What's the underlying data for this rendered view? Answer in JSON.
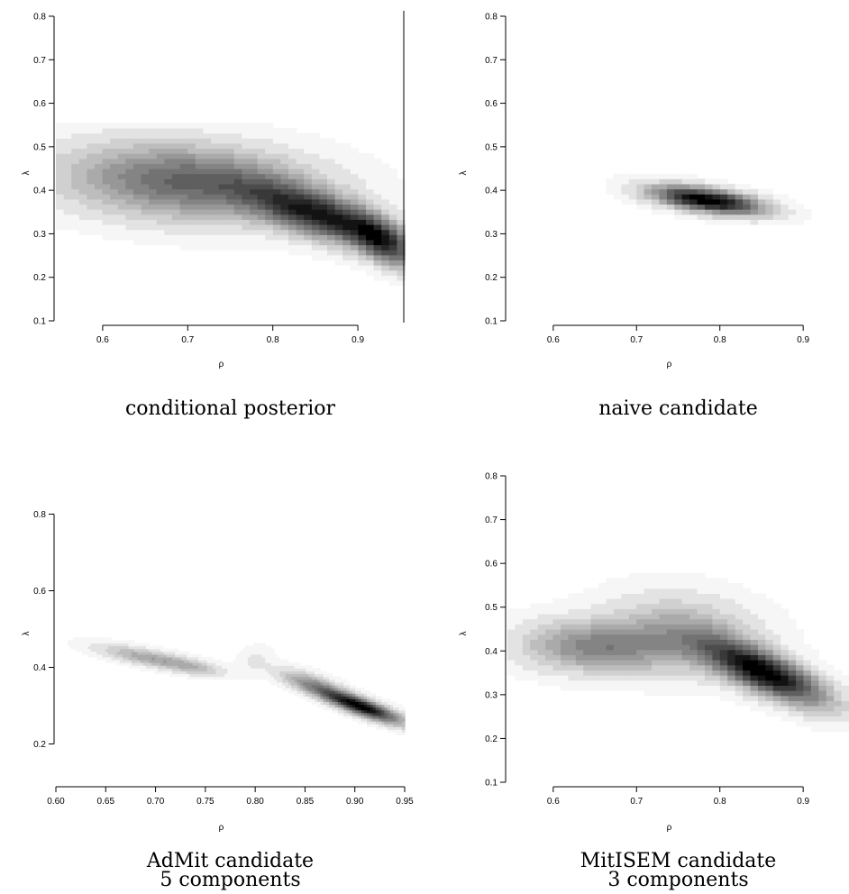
{
  "chart_data": [
    {
      "type": "heatmap",
      "caption_lines": [
        "conditional posterior"
      ],
      "xlabel": "ρ",
      "ylabel": "λ",
      "xlim": [
        0.545,
        0.955
      ],
      "ylim": [
        0.1,
        0.8
      ],
      "xticks": [
        0.6,
        0.7,
        0.8,
        0.9
      ],
      "xtick_labels": [
        "0.6",
        "0.7",
        "0.8",
        "0.9"
      ],
      "yticks": [
        0.1,
        0.2,
        0.3,
        0.4,
        0.5,
        0.6,
        0.7,
        0.8
      ],
      "ytick_labels": [
        "0.1",
        "0.2",
        "0.3",
        "0.4",
        "0.5",
        "0.6",
        "0.7",
        "0.8"
      ],
      "color_scale": "white-to-black",
      "vertical_line_at_x": 0.955,
      "grid_resolution": [
        45,
        60
      ],
      "density_components": [
        {
          "mean": [
            0.7,
            0.42
          ],
          "sd": [
            0.1,
            0.06
          ],
          "corr": -0.2,
          "weight": 0.55
        },
        {
          "mean": [
            0.86,
            0.34
          ],
          "sd": [
            0.06,
            0.05
          ],
          "corr": -0.7,
          "weight": 0.75
        },
        {
          "mean": [
            0.93,
            0.28
          ],
          "sd": [
            0.025,
            0.04
          ],
          "corr": -0.6,
          "weight": 0.55
        }
      ],
      "support": {
        "x": [
          0.545,
          0.955
        ],
        "y": [
          0.16,
          0.56
        ]
      },
      "levels": 14
    },
    {
      "type": "heatmap",
      "caption_lines": [
        "naive candidate"
      ],
      "xlabel": "ρ",
      "ylabel": "λ",
      "xlim": [
        0.545,
        0.955
      ],
      "ylim": [
        0.1,
        0.8
      ],
      "xticks": [
        0.6,
        0.7,
        0.8,
        0.9
      ],
      "xtick_labels": [
        "0.6",
        "0.7",
        "0.8",
        "0.9"
      ],
      "yticks": [
        0.1,
        0.2,
        0.3,
        0.4,
        0.5,
        0.6,
        0.7,
        0.8
      ],
      "ytick_labels": [
        "0.1",
        "0.2",
        "0.3",
        "0.4",
        "0.5",
        "0.6",
        "0.7",
        "0.8"
      ],
      "color_scale": "white-to-black",
      "grid_resolution": [
        45,
        60
      ],
      "density_components": [
        {
          "mean": [
            0.785,
            0.378
          ],
          "sd": [
            0.045,
            0.022
          ],
          "corr": -0.55,
          "weight": 1.0
        }
      ],
      "support": {
        "x": [
          0.545,
          0.955
        ],
        "y": [
          0.1,
          0.8
        ]
      },
      "levels": 14
    },
    {
      "type": "heatmap",
      "caption_lines": [
        "AdMit candidate",
        "5 components"
      ],
      "xlabel": "ρ",
      "ylabel": "λ",
      "xlim": [
        0.6,
        0.95
      ],
      "ylim": [
        0.1,
        0.9
      ],
      "xticks": [
        0.6,
        0.65,
        0.7,
        0.75,
        0.8,
        0.85,
        0.9,
        0.95
      ],
      "xtick_labels": [
        "0.60",
        "0.65",
        "0.70",
        "0.75",
        "0.80",
        "0.85",
        "0.90",
        "0.95"
      ],
      "yticks": [
        0.2,
        0.4,
        0.6,
        0.8
      ],
      "ytick_labels": [
        "0.2",
        "0.4",
        "0.6",
        "0.8"
      ],
      "color_scale": "white-to-black",
      "grid_resolution": [
        120,
        110
      ],
      "density_components": [
        {
          "mean": [
            0.695,
            0.425
          ],
          "sd": [
            0.035,
            0.022
          ],
          "corr": -0.75,
          "weight": 0.35
        },
        {
          "mean": [
            0.74,
            0.4
          ],
          "sd": [
            0.02,
            0.015
          ],
          "corr": -0.5,
          "weight": 0.15
        },
        {
          "mean": [
            0.8,
            0.42
          ],
          "sd": [
            0.012,
            0.025
          ],
          "corr": 0.2,
          "weight": 0.08
        },
        {
          "mean": [
            0.855,
            0.36
          ],
          "sd": [
            0.022,
            0.025
          ],
          "corr": -0.7,
          "weight": 0.35
        },
        {
          "mean": [
            0.905,
            0.3
          ],
          "sd": [
            0.028,
            0.03
          ],
          "corr": -0.85,
          "weight": 1.0
        }
      ],
      "support": {
        "x": [
          0.6,
          0.95
        ],
        "y": [
          0.1,
          0.9
        ]
      },
      "levels": 14
    },
    {
      "type": "heatmap",
      "caption_lines": [
        "MitISEM candidate",
        "3 components"
      ],
      "xlabel": "ρ",
      "ylabel": "λ",
      "xlim": [
        0.545,
        0.955
      ],
      "ylim": [
        0.1,
        0.8
      ],
      "xticks": [
        0.6,
        0.7,
        0.8,
        0.9
      ],
      "xtick_labels": [
        "0.6",
        "0.7",
        "0.8",
        "0.9"
      ],
      "yticks": [
        0.1,
        0.2,
        0.3,
        0.4,
        0.5,
        0.6,
        0.7,
        0.8
      ],
      "ytick_labels": [
        "0.1",
        "0.2",
        "0.3",
        "0.4",
        "0.5",
        "0.6",
        "0.7",
        "0.8"
      ],
      "color_scale": "white-to-black",
      "grid_resolution": [
        45,
        60
      ],
      "density_components": [
        {
          "mean": [
            0.65,
            0.41
          ],
          "sd": [
            0.06,
            0.04
          ],
          "corr": -0.1,
          "weight": 0.45
        },
        {
          "mean": [
            0.76,
            0.44
          ],
          "sd": [
            0.06,
            0.06
          ],
          "corr": -0.2,
          "weight": 0.3
        },
        {
          "mean": [
            0.855,
            0.35
          ],
          "sd": [
            0.05,
            0.05
          ],
          "corr": -0.75,
          "weight": 0.95
        }
      ],
      "support": {
        "x": [
          0.545,
          0.955
        ],
        "y": [
          0.1,
          0.8
        ]
      },
      "levels": 14
    }
  ]
}
